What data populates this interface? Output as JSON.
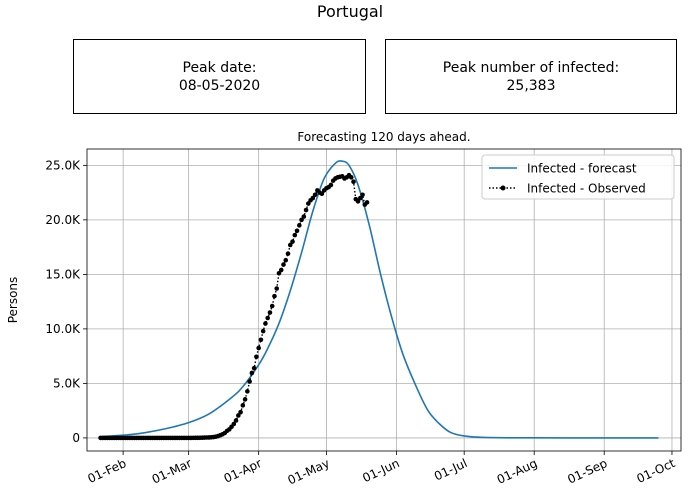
{
  "header": {
    "title": "Portugal",
    "peak_date_label": "Peak date:",
    "peak_date_value": "08-05-2020",
    "peak_infected_label": "Peak number of infected:",
    "peak_infected_value": "25,383"
  },
  "chart_data": {
    "type": "line",
    "title": "Forecasting 120 days ahead.",
    "ylabel": "Persons",
    "xlabel": "",
    "grid": true,
    "legend_position": "top-right",
    "xlim": [
      "2020-01-16",
      "2020-10-05"
    ],
    "ylim": [
      -1200,
      26500
    ],
    "x_ticks": [
      {
        "date": "2020-02-01",
        "label": "01-Feb"
      },
      {
        "date": "2020-03-01",
        "label": "01-Mar"
      },
      {
        "date": "2020-04-01",
        "label": "01-Apr"
      },
      {
        "date": "2020-05-01",
        "label": "01-May"
      },
      {
        "date": "2020-06-01",
        "label": "01-Jun"
      },
      {
        "date": "2020-07-01",
        "label": "01-Jul"
      },
      {
        "date": "2020-08-01",
        "label": "01-Aug"
      },
      {
        "date": "2020-09-01",
        "label": "01-Sep"
      },
      {
        "date": "2020-10-01",
        "label": "01-Oct"
      }
    ],
    "y_ticks": [
      {
        "value": 0,
        "label": "0"
      },
      {
        "value": 5000,
        "label": "5.0K"
      },
      {
        "value": 10000,
        "label": "10.0K"
      },
      {
        "value": 15000,
        "label": "15.0K"
      },
      {
        "value": 20000,
        "label": "20.0K"
      },
      {
        "value": 25000,
        "label": "25.0K"
      }
    ],
    "series": [
      {
        "name": "Infected - forecast",
        "color": "#1f77b4",
        "style": "solid",
        "points": [
          [
            "2020-01-22",
            120
          ],
          [
            "2020-02-01",
            250
          ],
          [
            "2020-02-10",
            460
          ],
          [
            "2020-02-20",
            850
          ],
          [
            "2020-03-01",
            1400
          ],
          [
            "2020-03-10",
            2200
          ],
          [
            "2020-03-20",
            3700
          ],
          [
            "2020-03-25",
            4700
          ],
          [
            "2020-04-01",
            6700
          ],
          [
            "2020-04-05",
            8200
          ],
          [
            "2020-04-10",
            10500
          ],
          [
            "2020-04-15",
            13500
          ],
          [
            "2020-04-20",
            17000
          ],
          [
            "2020-04-25",
            20800
          ],
          [
            "2020-04-30",
            23800
          ],
          [
            "2020-05-05",
            25200
          ],
          [
            "2020-05-08",
            25383
          ],
          [
            "2020-05-11",
            25000
          ],
          [
            "2020-05-15",
            23200
          ],
          [
            "2020-05-20",
            19500
          ],
          [
            "2020-05-25",
            15000
          ],
          [
            "2020-05-30",
            11000
          ],
          [
            "2020-06-04",
            7600
          ],
          [
            "2020-06-10",
            4600
          ],
          [
            "2020-06-15",
            2500
          ],
          [
            "2020-06-20",
            1300
          ],
          [
            "2020-06-25",
            500
          ],
          [
            "2020-07-01",
            180
          ],
          [
            "2020-07-10",
            40
          ],
          [
            "2020-08-01",
            5
          ],
          [
            "2020-09-01",
            0
          ],
          [
            "2020-09-25",
            0
          ]
        ]
      },
      {
        "name": "Infected - Observed",
        "color": "#000000",
        "style": "dotted-markers",
        "points": [
          [
            "2020-01-22",
            0
          ],
          [
            "2020-01-23",
            0
          ],
          [
            "2020-01-24",
            0
          ],
          [
            "2020-01-25",
            0
          ],
          [
            "2020-01-26",
            0
          ],
          [
            "2020-01-27",
            0
          ],
          [
            "2020-01-28",
            0
          ],
          [
            "2020-01-29",
            0
          ],
          [
            "2020-01-30",
            0
          ],
          [
            "2020-01-31",
            0
          ],
          [
            "2020-02-01",
            0
          ],
          [
            "2020-02-02",
            0
          ],
          [
            "2020-02-03",
            0
          ],
          [
            "2020-02-04",
            0
          ],
          [
            "2020-02-05",
            0
          ],
          [
            "2020-02-06",
            0
          ],
          [
            "2020-02-07",
            0
          ],
          [
            "2020-02-08",
            0
          ],
          [
            "2020-02-09",
            0
          ],
          [
            "2020-02-10",
            0
          ],
          [
            "2020-02-11",
            0
          ],
          [
            "2020-02-12",
            0
          ],
          [
            "2020-02-13",
            0
          ],
          [
            "2020-02-14",
            0
          ],
          [
            "2020-02-15",
            0
          ],
          [
            "2020-02-16",
            0
          ],
          [
            "2020-02-17",
            0
          ],
          [
            "2020-02-18",
            0
          ],
          [
            "2020-02-19",
            0
          ],
          [
            "2020-02-20",
            0
          ],
          [
            "2020-02-21",
            0
          ],
          [
            "2020-02-22",
            0
          ],
          [
            "2020-02-23",
            0
          ],
          [
            "2020-02-24",
            0
          ],
          [
            "2020-02-25",
            0
          ],
          [
            "2020-02-26",
            0
          ],
          [
            "2020-02-27",
            0
          ],
          [
            "2020-02-28",
            0
          ],
          [
            "2020-02-29",
            0
          ],
          [
            "2020-03-01",
            0
          ],
          [
            "2020-03-02",
            2
          ],
          [
            "2020-03-03",
            4
          ],
          [
            "2020-03-04",
            6
          ],
          [
            "2020-03-05",
            9
          ],
          [
            "2020-03-06",
            13
          ],
          [
            "2020-03-07",
            20
          ],
          [
            "2020-03-08",
            30
          ],
          [
            "2020-03-09",
            39
          ],
          [
            "2020-03-10",
            41
          ],
          [
            "2020-03-11",
            59
          ],
          [
            "2020-03-12",
            78
          ],
          [
            "2020-03-13",
            112
          ],
          [
            "2020-03-14",
            169
          ],
          [
            "2020-03-15",
            245
          ],
          [
            "2020-03-16",
            331
          ],
          [
            "2020-03-17",
            448
          ],
          [
            "2020-03-18",
            642
          ],
          [
            "2020-03-19",
            785
          ],
          [
            "2020-03-20",
            1020
          ],
          [
            "2020-03-21",
            1280
          ],
          [
            "2020-03-22",
            1600
          ],
          [
            "2020-03-23",
            2060
          ],
          [
            "2020-03-24",
            2360
          ],
          [
            "2020-03-25",
            2990
          ],
          [
            "2020-03-26",
            3540
          ],
          [
            "2020-03-27",
            4270
          ],
          [
            "2020-03-28",
            5170
          ],
          [
            "2020-03-29",
            5960
          ],
          [
            "2020-03-30",
            6400
          ],
          [
            "2020-03-31",
            7440
          ],
          [
            "2020-04-01",
            8250
          ],
          [
            "2020-04-02",
            9000
          ],
          [
            "2020-04-03",
            9800
          ],
          [
            "2020-04-04",
            10500
          ],
          [
            "2020-04-05",
            11000
          ],
          [
            "2020-04-06",
            11500
          ],
          [
            "2020-04-07",
            12100
          ],
          [
            "2020-04-08",
            13000
          ],
          [
            "2020-04-09",
            13700
          ],
          [
            "2020-04-10",
            15100
          ],
          [
            "2020-04-11",
            15400
          ],
          [
            "2020-04-12",
            15900
          ],
          [
            "2020-04-13",
            16300
          ],
          [
            "2020-04-14",
            16900
          ],
          [
            "2020-04-15",
            17700
          ],
          [
            "2020-04-16",
            18000
          ],
          [
            "2020-04-17",
            18600
          ],
          [
            "2020-04-18",
            19000
          ],
          [
            "2020-04-19",
            19500
          ],
          [
            "2020-04-20",
            20000
          ],
          [
            "2020-04-21",
            20300
          ],
          [
            "2020-04-22",
            20900
          ],
          [
            "2020-04-23",
            21500
          ],
          [
            "2020-04-24",
            21800
          ],
          [
            "2020-04-25",
            22000
          ],
          [
            "2020-04-26",
            22300
          ],
          [
            "2020-04-27",
            22700
          ],
          [
            "2020-04-28",
            22500
          ],
          [
            "2020-04-29",
            22400
          ],
          [
            "2020-04-30",
            22700
          ],
          [
            "2020-05-01",
            22900
          ],
          [
            "2020-05-02",
            23000
          ],
          [
            "2020-05-03",
            23200
          ],
          [
            "2020-05-04",
            23600
          ],
          [
            "2020-05-05",
            23800
          ],
          [
            "2020-05-06",
            23900
          ],
          [
            "2020-05-07",
            23950
          ],
          [
            "2020-05-08",
            24000
          ],
          [
            "2020-05-09",
            23800
          ],
          [
            "2020-05-10",
            23900
          ],
          [
            "2020-05-11",
            24100
          ],
          [
            "2020-05-12",
            23900
          ],
          [
            "2020-05-13",
            23500
          ],
          [
            "2020-05-14",
            21900
          ],
          [
            "2020-05-15",
            21700
          ],
          [
            "2020-05-16",
            22000
          ],
          [
            "2020-05-17",
            22300
          ],
          [
            "2020-05-18",
            21400
          ],
          [
            "2020-05-19",
            21600
          ]
        ]
      }
    ]
  }
}
